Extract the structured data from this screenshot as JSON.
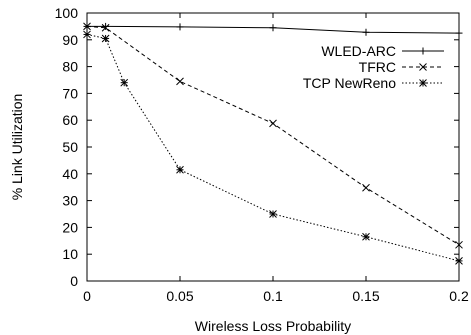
{
  "chart_data": {
    "type": "line",
    "xlabel": "Wireless Loss Probability",
    "ylabel": "% Link Utilization",
    "xlim": [
      0,
      0.2
    ],
    "ylim": [
      0,
      100
    ],
    "x_ticks": [
      0,
      0.05,
      0.1,
      0.15,
      0.2
    ],
    "x_tick_labels": [
      "0",
      "0.05",
      "0.1",
      "0.15",
      "0.2"
    ],
    "y_ticks": [
      0,
      10,
      20,
      30,
      40,
      50,
      60,
      70,
      80,
      90,
      100
    ],
    "y_tick_labels": [
      "0",
      "10",
      "20",
      "30",
      "40",
      "50",
      "60",
      "70",
      "80",
      "90",
      "100"
    ],
    "grid": false,
    "legend_position": "top-right",
    "series": [
      {
        "name": "WLED-ARC",
        "line_style": "solid",
        "marker": "plus",
        "points": [
          [
            0,
            95
          ],
          [
            0.01,
            95
          ],
          [
            0.05,
            94.8
          ],
          [
            0.1,
            94.5
          ],
          [
            0.15,
            92.8
          ],
          [
            0.2,
            92.5
          ]
        ]
      },
      {
        "name": "TFRC",
        "line_style": "dashed",
        "marker": "cross",
        "points": [
          [
            0,
            95
          ],
          [
            0.01,
            94.5
          ],
          [
            0.05,
            74.5
          ],
          [
            0.1,
            58.8
          ],
          [
            0.15,
            34.8
          ],
          [
            0.2,
            13.5
          ]
        ]
      },
      {
        "name": "TCP NewReno",
        "line_style": "dotted",
        "marker": "star",
        "points": [
          [
            0,
            92
          ],
          [
            0.01,
            90.5
          ],
          [
            0.02,
            74
          ],
          [
            0.05,
            41.5
          ],
          [
            0.1,
            25
          ],
          [
            0.15,
            16.5
          ],
          [
            0.2,
            7.5
          ]
        ]
      }
    ]
  }
}
